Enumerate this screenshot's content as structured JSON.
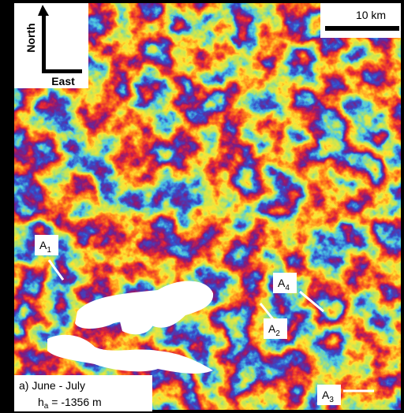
{
  "compass": {
    "north": "North",
    "east": "East"
  },
  "scale_bar": {
    "label": "10 km"
  },
  "markers": [
    {
      "letter": "A",
      "sub": "1"
    },
    {
      "letter": "A",
      "sub": "2"
    },
    {
      "letter": "A",
      "sub": "3"
    },
    {
      "letter": "A",
      "sub": "4"
    }
  ],
  "caption": {
    "title": "a) June - July",
    "symbol": "h",
    "sub": "a",
    "value": " = -1356 m"
  }
}
